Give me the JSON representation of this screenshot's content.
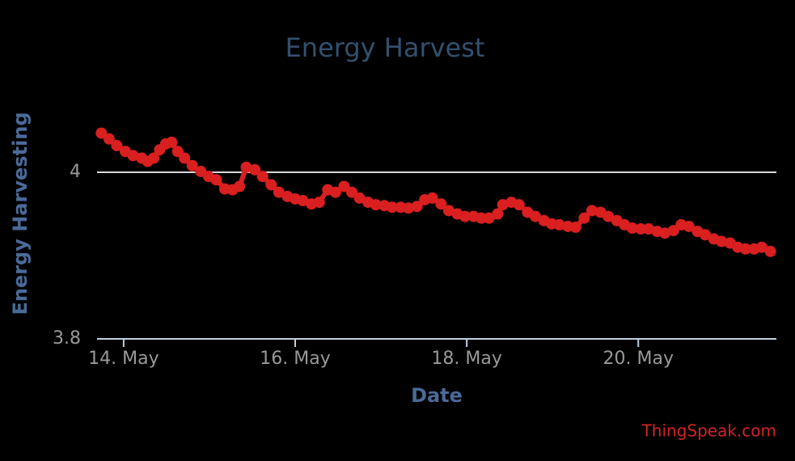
{
  "chart_data": {
    "type": "line",
    "title": "Energy Harvest",
    "x_label": "Date",
    "y_label": "Energy Harvesting",
    "credit": "ThingSpeak.com",
    "color": "#d91f1f",
    "x": [
      13.74,
      13.83,
      13.92,
      14.02,
      14.11,
      14.21,
      14.28,
      14.35,
      14.42,
      14.49,
      14.56,
      14.63,
      14.71,
      14.8,
      14.9,
      14.99,
      15.08,
      15.18,
      15.27,
      15.35,
      15.43,
      15.53,
      15.62,
      15.72,
      15.81,
      15.91,
      16.0,
      16.09,
      16.19,
      16.28,
      16.38,
      16.47,
      16.57,
      16.66,
      16.75,
      16.85,
      16.94,
      17.04,
      17.13,
      17.23,
      17.32,
      17.42,
      17.51,
      17.6,
      17.7,
      17.79,
      17.89,
      17.98,
      18.08,
      18.17,
      18.26,
      18.36,
      18.42,
      18.52,
      18.61,
      18.71,
      18.8,
      18.9,
      18.99,
      19.08,
      19.18,
      19.27,
      19.37,
      19.46,
      19.56,
      19.65,
      19.75,
      19.84,
      19.93,
      20.03,
      20.12,
      20.22,
      20.31,
      20.41,
      20.5,
      20.59,
      20.69,
      20.78,
      20.88,
      20.97,
      21.07,
      21.16,
      21.25,
      21.35,
      21.44,
      21.54
    ],
    "values": [
      4.047,
      4.04,
      4.032,
      4.025,
      4.02,
      4.017,
      4.013,
      4.017,
      4.027,
      4.034,
      4.036,
      4.025,
      4.017,
      4.008,
      4.001,
      3.995,
      3.991,
      3.98,
      3.979,
      3.983,
      4.006,
      4.003,
      3.995,
      3.985,
      3.976,
      3.971,
      3.968,
      3.966,
      3.962,
      3.964,
      3.979,
      3.976,
      3.983,
      3.976,
      3.969,
      3.964,
      3.961,
      3.96,
      3.958,
      3.958,
      3.957,
      3.959,
      3.967,
      3.969,
      3.962,
      3.954,
      3.95,
      3.947,
      3.947,
      3.945,
      3.945,
      3.95,
      3.961,
      3.964,
      3.961,
      3.952,
      3.947,
      3.942,
      3.938,
      3.937,
      3.935,
      3.934,
      3.945,
      3.954,
      3.952,
      3.947,
      3.942,
      3.937,
      3.933,
      3.932,
      3.932,
      3.929,
      3.927,
      3.93,
      3.937,
      3.935,
      3.929,
      3.925,
      3.92,
      3.917,
      3.915,
      3.91,
      3.908,
      3.908,
      3.91,
      3.905
    ],
    "xlim": [
      13.69,
      21.61
    ],
    "xticks": [
      {
        "value": 14,
        "label": "14. May"
      },
      {
        "value": 16,
        "label": "16. May"
      },
      {
        "value": 18,
        "label": "18. May"
      },
      {
        "value": 20,
        "label": "20. May"
      }
    ],
    "ylim": [
      3.8,
      4.1
    ],
    "yticks": [
      3.8,
      4
    ],
    "grid": true
  }
}
